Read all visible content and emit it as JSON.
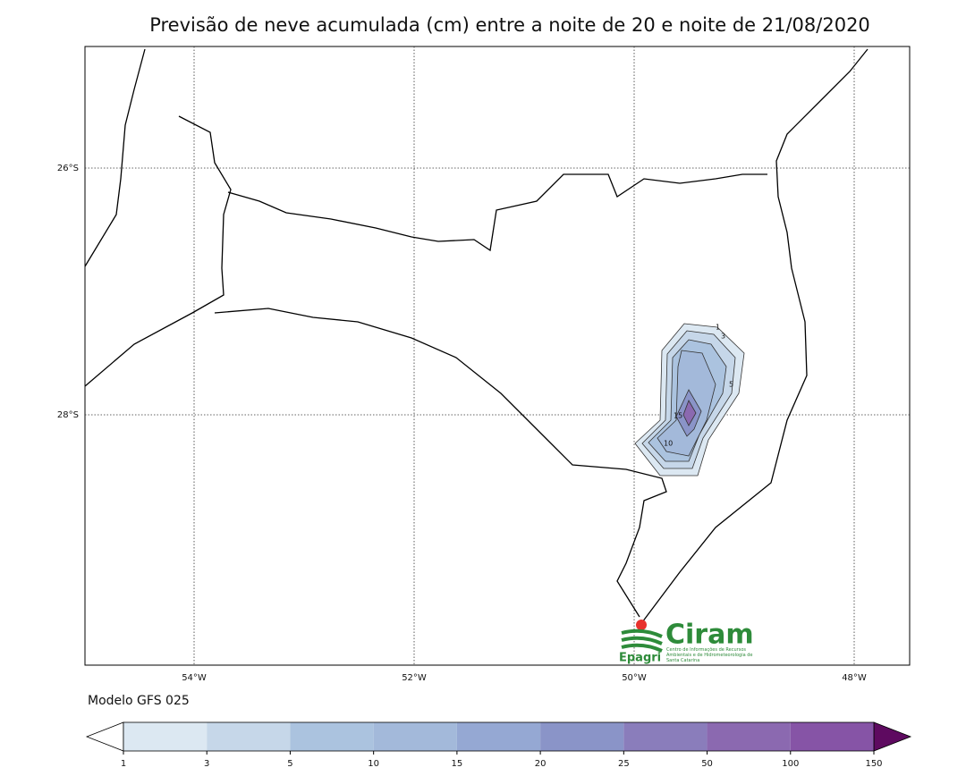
{
  "title": "Previsão de neve acumulada (cm) entre a noite de 20 e noite de 21/08/2020",
  "map": {
    "lon_labels": [
      "54°W",
      "52°W",
      "50°W",
      "48°W"
    ],
    "lat_labels": [
      "26°S",
      "28°S"
    ],
    "contour_labels": [
      "1",
      "3",
      "5",
      "10",
      "15"
    ]
  },
  "model_label": "Modelo GFS 025",
  "logo": {
    "name": "Ciram",
    "org": "Epagri",
    "caption": "Centro de Informações de Recursos Ambientais e de Hidrometeorologia de Santa Catarina"
  },
  "colorbar": {
    "levels": [
      1,
      3,
      5,
      10,
      15,
      20,
      25,
      50,
      100,
      150
    ],
    "colors": [
      "#dce8f2",
      "#c6d7e9",
      "#abc3df",
      "#a3b9da",
      "#95a8d3",
      "#8a94c8",
      "#8a7dbb",
      "#8b69b0",
      "#8654a6"
    ],
    "under_color": "#ffffff",
    "over_color": "#5e0a60"
  }
}
